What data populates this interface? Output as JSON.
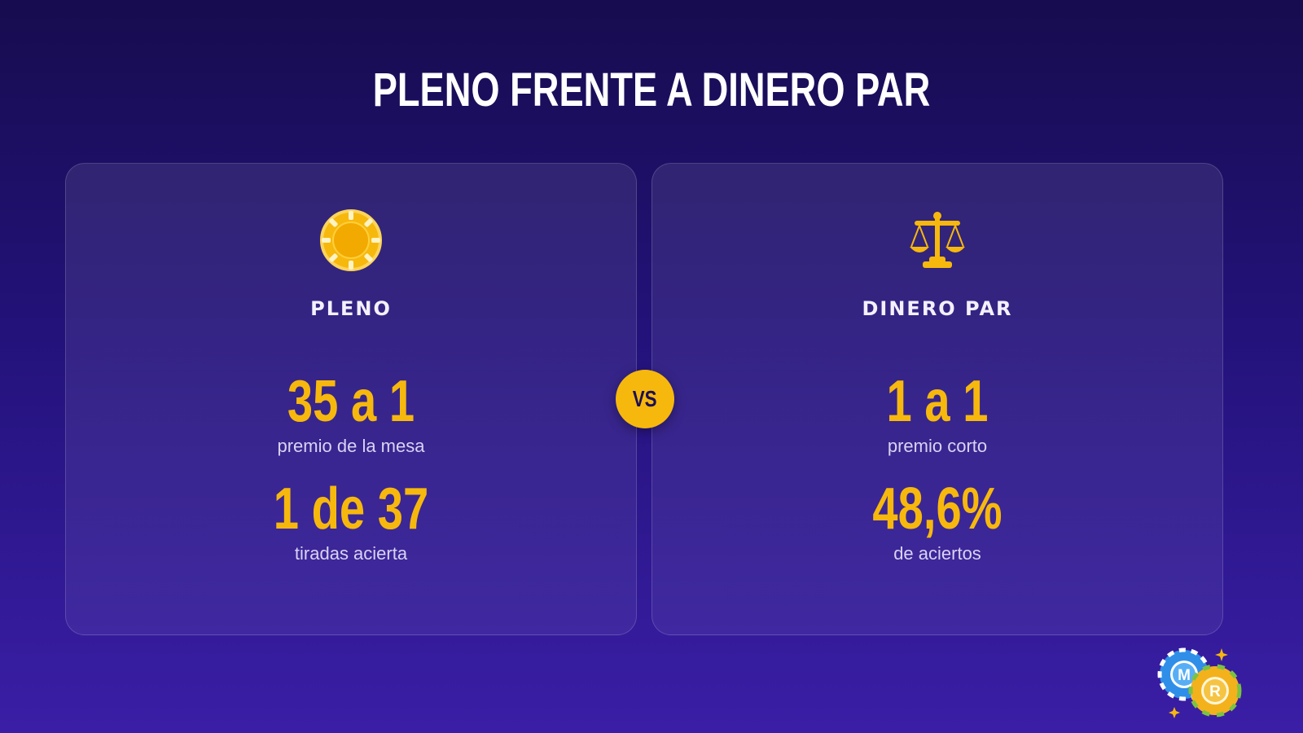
{
  "title": "PLENO FRENTE A DINERO PAR",
  "vs_label": "VS",
  "colors": {
    "accent": "#f7b80d",
    "background_top": "#170c4f",
    "background_bottom": "#3a1ea6"
  },
  "cards": [
    {
      "icon": "casino-chip-icon",
      "label": "PLENO",
      "stats": [
        {
          "value": "35 a 1",
          "caption": "premio de la mesa"
        },
        {
          "value": "1 de 37",
          "caption": "tiradas acierta"
        }
      ]
    },
    {
      "icon": "balance-scale-icon",
      "label": "DINERO PAR",
      "stats": [
        {
          "value": "1 a 1",
          "caption": "premio corto"
        },
        {
          "value": "48,6%",
          "caption": "de aciertos"
        }
      ]
    }
  ],
  "logo": {
    "icon": "casino-chips-logo-icon",
    "letters": [
      "M",
      "R"
    ]
  }
}
